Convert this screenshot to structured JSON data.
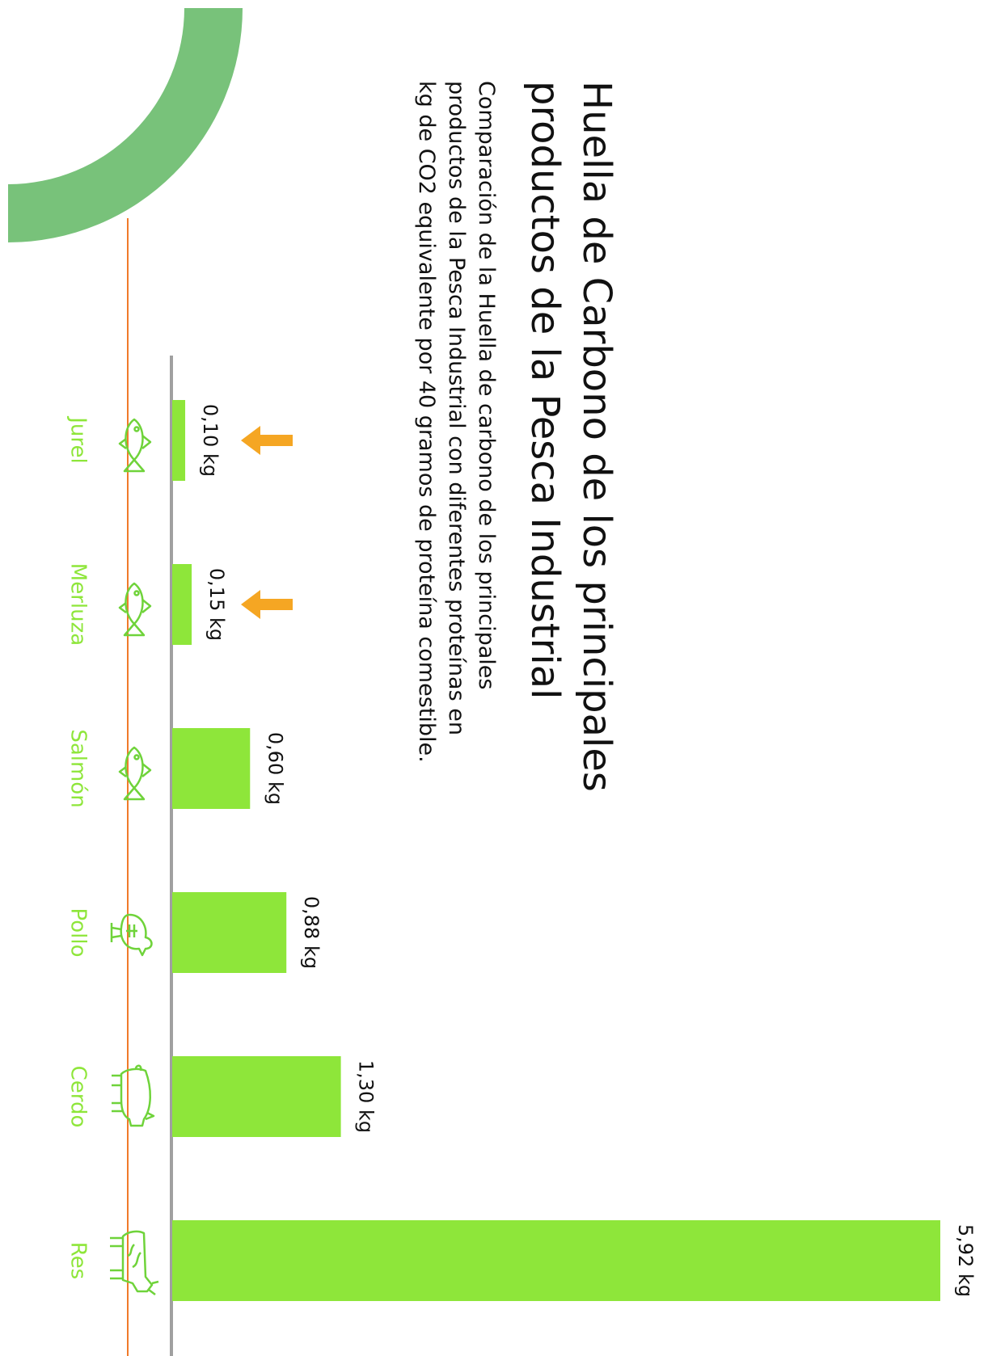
{
  "title": "Huella de Carbono de los principales productos de la Pesca Industrial",
  "subtitle": "Comparación de la Huella de carbono de los principales productos de la Pesca Industrial con diferentes proteínas en kg de CO2 equivalente por 40 gramos de proteína comestible.",
  "colors": {
    "bar": "#8ee63a",
    "label": "#8ee63a",
    "icon": "#6fd33a",
    "arrow": "#f5a623",
    "baseline": "#a0a0a0",
    "orange_line": "#f07a2a",
    "arc": "#78c27a"
  },
  "chart_data": {
    "type": "bar",
    "orientation": "vertical-bars-rotated",
    "categories": [
      "Jurel",
      "Merluza",
      "Salmón",
      "Pollo",
      "Cerdo",
      "Res"
    ],
    "values": [
      0.1,
      0.15,
      0.6,
      0.88,
      1.3,
      5.92
    ],
    "value_labels": [
      "0,10 kg",
      "0,15 kg",
      "0,60 kg",
      "0,88 kg",
      "1,30 kg",
      "5,92 kg"
    ],
    "icons": [
      "fish-icon",
      "fish-icon",
      "fish-icon",
      "chicken-icon",
      "pig-icon",
      "cow-icon"
    ],
    "highlighted": [
      "Jurel",
      "Merluza"
    ],
    "unit": "kg CO2 eq",
    "ylim": [
      0,
      5.92
    ],
    "grid": false,
    "legend": "none"
  }
}
